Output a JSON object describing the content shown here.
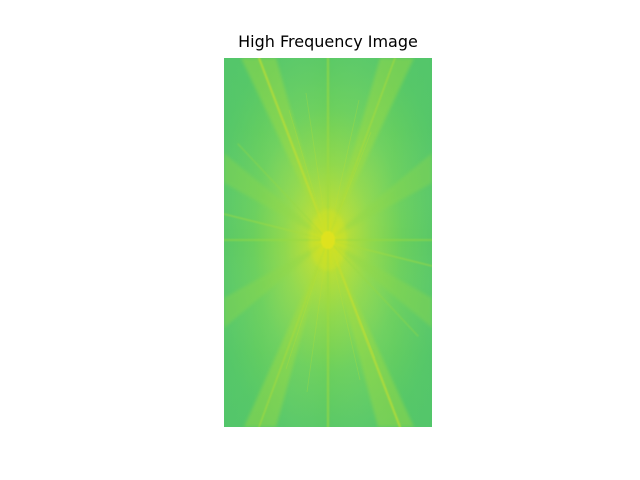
{
  "figure": {
    "title": "High Frequency Image"
  },
  "image": {
    "subject": "magnitude-spectrum",
    "colors": {
      "background_green": "#5ccf69",
      "edge_green": "#55c66b",
      "mid_green": "#7cd551",
      "yellow_green": "#a8dc3a",
      "center_yellow": "#dfe318"
    }
  }
}
